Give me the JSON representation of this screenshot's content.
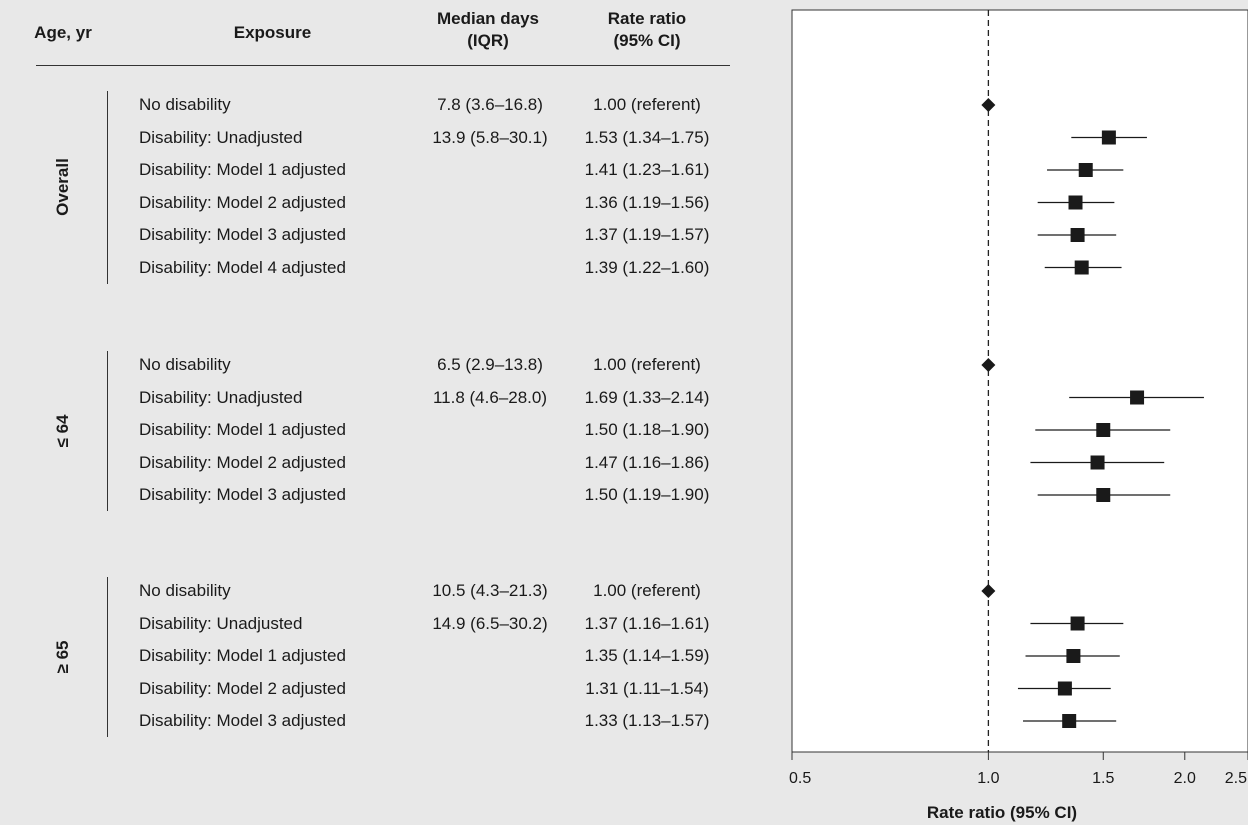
{
  "headers": {
    "age": "Age, yr",
    "exposure": "Exposure",
    "median": "Median days\n(IQR)",
    "rate_ratio": "Rate ratio\n(95% CI)"
  },
  "colors": {
    "background": "#e8e8e8",
    "plot_background": "#ffffff",
    "marker": "#1a1a1a"
  },
  "chart_data": {
    "type": "forest",
    "xlabel": "Rate ratio (95% CI)",
    "xscale": "log",
    "xlim": [
      0.5,
      2.5
    ],
    "xticks": [
      0.5,
      1.0,
      1.5,
      2.0,
      2.5
    ],
    "xtick_labels": [
      "0.5",
      "1.0",
      "1.5",
      "2.0",
      "2.5"
    ],
    "reference_line": 1.0,
    "groups": [
      {
        "label": "Overall",
        "rows": [
          {
            "exposure": "No disability",
            "median": "7.8 (3.6–16.8)",
            "rr_text": "1.00 (referent)",
            "rr": 1.0,
            "lo": 1.0,
            "hi": 1.0,
            "marker": "diamond"
          },
          {
            "exposure": "Disability: Unadjusted",
            "median": "13.9 (5.8–30.1)",
            "rr_text": "1.53 (1.34–1.75)",
            "rr": 1.53,
            "lo": 1.34,
            "hi": 1.75,
            "marker": "square"
          },
          {
            "exposure": "Disability: Model 1 adjusted",
            "median": "",
            "rr_text": "1.41 (1.23–1.61)",
            "rr": 1.41,
            "lo": 1.23,
            "hi": 1.61,
            "marker": "square"
          },
          {
            "exposure": "Disability: Model 2 adjusted",
            "median": "",
            "rr_text": "1.36 (1.19–1.56)",
            "rr": 1.36,
            "lo": 1.19,
            "hi": 1.56,
            "marker": "square"
          },
          {
            "exposure": "Disability: Model 3 adjusted",
            "median": "",
            "rr_text": "1.37 (1.19–1.57)",
            "rr": 1.37,
            "lo": 1.19,
            "hi": 1.57,
            "marker": "square"
          },
          {
            "exposure": "Disability: Model 4 adjusted",
            "median": "",
            "rr_text": "1.39 (1.22–1.60)",
            "rr": 1.39,
            "lo": 1.22,
            "hi": 1.6,
            "marker": "square"
          }
        ]
      },
      {
        "label": "≤ 64",
        "rows": [
          {
            "exposure": "No disability",
            "median": "6.5 (2.9–13.8)",
            "rr_text": "1.00 (referent)",
            "rr": 1.0,
            "lo": 1.0,
            "hi": 1.0,
            "marker": "diamond"
          },
          {
            "exposure": "Disability: Unadjusted",
            "median": "11.8 (4.6–28.0)",
            "rr_text": "1.69 (1.33–2.14)",
            "rr": 1.69,
            "lo": 1.33,
            "hi": 2.14,
            "marker": "square"
          },
          {
            "exposure": "Disability: Model 1 adjusted",
            "median": "",
            "rr_text": "1.50 (1.18–1.90)",
            "rr": 1.5,
            "lo": 1.18,
            "hi": 1.9,
            "marker": "square"
          },
          {
            "exposure": "Disability: Model 2 adjusted",
            "median": "",
            "rr_text": "1.47 (1.16–1.86)",
            "rr": 1.47,
            "lo": 1.16,
            "hi": 1.86,
            "marker": "square"
          },
          {
            "exposure": "Disability: Model 3 adjusted",
            "median": "",
            "rr_text": "1.50 (1.19–1.90)",
            "rr": 1.5,
            "lo": 1.19,
            "hi": 1.9,
            "marker": "square"
          }
        ]
      },
      {
        "label": "≥ 65",
        "rows": [
          {
            "exposure": "No disability",
            "median": "10.5 (4.3–21.3)",
            "rr_text": "1.00 (referent)",
            "rr": 1.0,
            "lo": 1.0,
            "hi": 1.0,
            "marker": "diamond"
          },
          {
            "exposure": "Disability: Unadjusted",
            "median": "14.9 (6.5–30.2)",
            "rr_text": "1.37 (1.16–1.61)",
            "rr": 1.37,
            "lo": 1.16,
            "hi": 1.61,
            "marker": "square"
          },
          {
            "exposure": "Disability: Model 1 adjusted",
            "median": "",
            "rr_text": "1.35 (1.14–1.59)",
            "rr": 1.35,
            "lo": 1.14,
            "hi": 1.59,
            "marker": "square"
          },
          {
            "exposure": "Disability: Model 2 adjusted",
            "median": "",
            "rr_text": "1.31 (1.11–1.54)",
            "rr": 1.31,
            "lo": 1.11,
            "hi": 1.54,
            "marker": "square"
          },
          {
            "exposure": "Disability: Model 3 adjusted",
            "median": "",
            "rr_text": "1.33 (1.13–1.57)",
            "rr": 1.33,
            "lo": 1.13,
            "hi": 1.57,
            "marker": "square"
          }
        ]
      }
    ]
  }
}
